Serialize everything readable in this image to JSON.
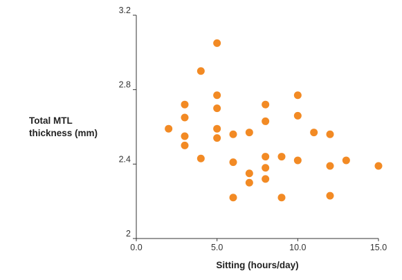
{
  "chart_data": {
    "type": "scatter",
    "title": "",
    "xlabel": "Sitting (hours/day)",
    "ylabel_lines": [
      "Total MTL",
      "thickness (mm)"
    ],
    "xlim": [
      0,
      15
    ],
    "ylim": [
      2,
      3.2
    ],
    "x_ticks": [
      0,
      5,
      10,
      15
    ],
    "x_tick_labels": [
      "0.0",
      "5.0",
      "10.0",
      "15.0"
    ],
    "y_ticks": [
      2,
      2.4,
      2.8,
      3.2
    ],
    "y_tick_labels": [
      "2",
      "2.4",
      "2.8",
      "3.2"
    ],
    "grid": false,
    "marker_color": "#F28A24",
    "points": [
      {
        "x": 2.0,
        "y": 2.59
      },
      {
        "x": 3.0,
        "y": 2.72
      },
      {
        "x": 3.0,
        "y": 2.65
      },
      {
        "x": 3.0,
        "y": 2.55
      },
      {
        "x": 3.0,
        "y": 2.5
      },
      {
        "x": 4.0,
        "y": 2.9
      },
      {
        "x": 4.0,
        "y": 2.43
      },
      {
        "x": 5.0,
        "y": 3.05
      },
      {
        "x": 5.0,
        "y": 2.77
      },
      {
        "x": 5.0,
        "y": 2.7
      },
      {
        "x": 5.0,
        "y": 2.59
      },
      {
        "x": 5.0,
        "y": 2.54
      },
      {
        "x": 6.0,
        "y": 2.56
      },
      {
        "x": 6.0,
        "y": 2.41
      },
      {
        "x": 6.0,
        "y": 2.22
      },
      {
        "x": 7.0,
        "y": 2.57
      },
      {
        "x": 7.0,
        "y": 2.35
      },
      {
        "x": 7.0,
        "y": 2.3
      },
      {
        "x": 8.0,
        "y": 2.72
      },
      {
        "x": 8.0,
        "y": 2.63
      },
      {
        "x": 8.0,
        "y": 2.44
      },
      {
        "x": 8.0,
        "y": 2.38
      },
      {
        "x": 8.0,
        "y": 2.32
      },
      {
        "x": 9.0,
        "y": 2.44
      },
      {
        "x": 9.0,
        "y": 2.22
      },
      {
        "x": 10.0,
        "y": 2.77
      },
      {
        "x": 10.0,
        "y": 2.66
      },
      {
        "x": 10.0,
        "y": 2.42
      },
      {
        "x": 11.0,
        "y": 2.57
      },
      {
        "x": 12.0,
        "y": 2.56
      },
      {
        "x": 12.0,
        "y": 2.39
      },
      {
        "x": 12.0,
        "y": 2.23
      },
      {
        "x": 13.0,
        "y": 2.42
      },
      {
        "x": 15.0,
        "y": 2.39
      }
    ]
  }
}
